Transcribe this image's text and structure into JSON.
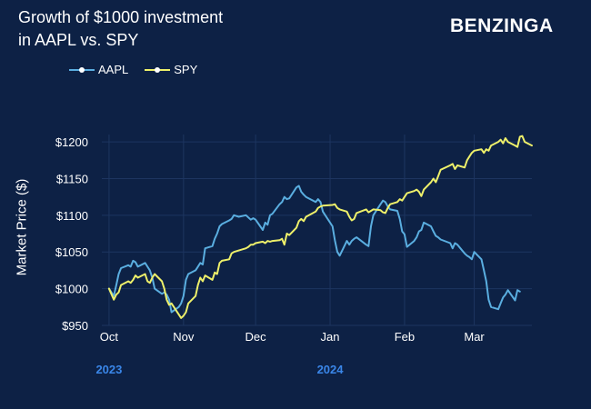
{
  "title": {
    "line1": "Growth of $1000 investment",
    "line2": "in AAPL vs. SPY"
  },
  "brand": "BENZINGA",
  "colors": {
    "background": "#0d2145",
    "grid": "#1d3560",
    "aapl": "#5aaee0",
    "spy": "#eef06a",
    "year": "#3a86e8"
  },
  "chart_data": {
    "type": "line",
    "ylabel": "Market Price ($)",
    "ylim": [
      950,
      1210
    ],
    "y_ticks": [
      950,
      1000,
      1050,
      1100,
      1150,
      1200
    ],
    "y_tick_labels": [
      "$950",
      "$1000",
      "$1050",
      "$1100",
      "$1150",
      "$1200"
    ],
    "x_range": [
      "2023-09-28",
      "2024-03-25"
    ],
    "x_ticks": [
      {
        "date": "2023-10-01",
        "label": "Oct"
      },
      {
        "date": "2023-11-01",
        "label": "Nov"
      },
      {
        "date": "2023-12-01",
        "label": "Dec"
      },
      {
        "date": "2024-01-01",
        "label": "Jan"
      },
      {
        "date": "2024-02-01",
        "label": "Feb"
      },
      {
        "date": "2024-03-01",
        "label": "Mar"
      }
    ],
    "year_labels": [
      {
        "date": "2023-10-01",
        "label": "2023"
      },
      {
        "date": "2024-01-01",
        "label": "2024"
      }
    ],
    "legend_position": "top-left",
    "grid": true,
    "series": [
      {
        "name": "AAPL",
        "points": [
          [
            "2023-10-01",
            1000
          ],
          [
            "2023-10-03",
            990
          ],
          [
            "2023-10-04",
            1005
          ],
          [
            "2023-10-05",
            1020
          ],
          [
            "2023-10-06",
            1028
          ],
          [
            "2023-10-09",
            1032
          ],
          [
            "2023-10-10",
            1030
          ],
          [
            "2023-10-11",
            1038
          ],
          [
            "2023-10-12",
            1036
          ],
          [
            "2023-10-13",
            1030
          ],
          [
            "2023-10-16",
            1035
          ],
          [
            "2023-10-17",
            1030
          ],
          [
            "2023-10-18",
            1025
          ],
          [
            "2023-10-19",
            1015
          ],
          [
            "2023-10-20",
            1000
          ],
          [
            "2023-10-23",
            993
          ],
          [
            "2023-10-24",
            995
          ],
          [
            "2023-10-25",
            992
          ],
          [
            "2023-10-26",
            985
          ],
          [
            "2023-10-27",
            968
          ],
          [
            "2023-10-30",
            975
          ],
          [
            "2023-10-31",
            980
          ],
          [
            "2023-11-01",
            990
          ],
          [
            "2023-11-02",
            1012
          ],
          [
            "2023-11-03",
            1020
          ],
          [
            "2023-11-06",
            1025
          ],
          [
            "2023-11-07",
            1030
          ],
          [
            "2023-11-08",
            1035
          ],
          [
            "2023-11-09",
            1033
          ],
          [
            "2023-11-10",
            1055
          ],
          [
            "2023-11-13",
            1058
          ],
          [
            "2023-11-14",
            1068
          ],
          [
            "2023-11-15",
            1075
          ],
          [
            "2023-11-16",
            1085
          ],
          [
            "2023-11-17",
            1088
          ],
          [
            "2023-11-20",
            1093
          ],
          [
            "2023-11-21",
            1095
          ],
          [
            "2023-11-22",
            1100
          ],
          [
            "2023-11-24",
            1098
          ],
          [
            "2023-11-27",
            1100
          ],
          [
            "2023-11-28",
            1097
          ],
          [
            "2023-11-29",
            1094
          ],
          [
            "2023-11-30",
            1096
          ],
          [
            "2023-12-01",
            1094
          ],
          [
            "2023-12-04",
            1080
          ],
          [
            "2023-12-05",
            1090
          ],
          [
            "2023-12-06",
            1087
          ],
          [
            "2023-12-07",
            1100
          ],
          [
            "2023-12-08",
            1102
          ],
          [
            "2023-12-11",
            1115
          ],
          [
            "2023-12-12",
            1118
          ],
          [
            "2023-12-13",
            1125
          ],
          [
            "2023-12-14",
            1122
          ],
          [
            "2023-12-15",
            1123
          ],
          [
            "2023-12-18",
            1138
          ],
          [
            "2023-12-19",
            1140
          ],
          [
            "2023-12-20",
            1132
          ],
          [
            "2023-12-21",
            1128
          ],
          [
            "2023-12-22",
            1125
          ],
          [
            "2023-12-26",
            1118
          ],
          [
            "2023-12-27",
            1122
          ],
          [
            "2023-12-28",
            1118
          ],
          [
            "2023-12-29",
            1105
          ],
          [
            "2024-01-02",
            1085
          ],
          [
            "2024-01-03",
            1066
          ],
          [
            "2024-01-04",
            1050
          ],
          [
            "2024-01-05",
            1045
          ],
          [
            "2024-01-08",
            1065
          ],
          [
            "2024-01-09",
            1060
          ],
          [
            "2024-01-10",
            1065
          ],
          [
            "2024-01-11",
            1068
          ],
          [
            "2024-01-12",
            1070
          ],
          [
            "2024-01-16",
            1060
          ],
          [
            "2024-01-17",
            1058
          ],
          [
            "2024-01-18",
            1085
          ],
          [
            "2024-01-19",
            1100
          ],
          [
            "2024-01-22",
            1115
          ],
          [
            "2024-01-23",
            1120
          ],
          [
            "2024-01-24",
            1118
          ],
          [
            "2024-01-25",
            1112
          ],
          [
            "2024-01-26",
            1108
          ],
          [
            "2024-01-29",
            1106
          ],
          [
            "2024-01-30",
            1095
          ],
          [
            "2024-01-31",
            1078
          ],
          [
            "2024-02-01",
            1074
          ],
          [
            "2024-02-02",
            1057
          ],
          [
            "2024-02-05",
            1065
          ],
          [
            "2024-02-06",
            1070
          ],
          [
            "2024-02-07",
            1078
          ],
          [
            "2024-02-08",
            1080
          ],
          [
            "2024-02-09",
            1090
          ],
          [
            "2024-02-12",
            1085
          ],
          [
            "2024-02-13",
            1078
          ],
          [
            "2024-02-14",
            1072
          ],
          [
            "2024-02-15",
            1070
          ],
          [
            "2024-02-16",
            1067
          ],
          [
            "2024-02-20",
            1062
          ],
          [
            "2024-02-21",
            1055
          ],
          [
            "2024-02-22",
            1062
          ],
          [
            "2024-02-23",
            1060
          ],
          [
            "2024-02-26",
            1048
          ],
          [
            "2024-02-27",
            1045
          ],
          [
            "2024-02-28",
            1043
          ],
          [
            "2024-02-29",
            1040
          ],
          [
            "2024-03-01",
            1050
          ],
          [
            "2024-03-04",
            1040
          ],
          [
            "2024-03-05",
            1025
          ],
          [
            "2024-03-06",
            1010
          ],
          [
            "2024-03-07",
            985
          ],
          [
            "2024-03-08",
            975
          ],
          [
            "2024-03-11",
            972
          ],
          [
            "2024-03-12",
            980
          ],
          [
            "2024-03-13",
            988
          ],
          [
            "2024-03-14",
            992
          ],
          [
            "2024-03-15",
            998
          ],
          [
            "2024-03-18",
            984
          ],
          [
            "2024-03-19",
            998
          ],
          [
            "2024-03-20",
            996
          ]
        ]
      },
      {
        "name": "SPY",
        "points": [
          [
            "2023-10-01",
            1000
          ],
          [
            "2023-10-03",
            985
          ],
          [
            "2023-10-04",
            992
          ],
          [
            "2023-10-05",
            995
          ],
          [
            "2023-10-06",
            1005
          ],
          [
            "2023-10-09",
            1010
          ],
          [
            "2023-10-10",
            1008
          ],
          [
            "2023-10-11",
            1012
          ],
          [
            "2023-10-12",
            1018
          ],
          [
            "2023-10-13",
            1015
          ],
          [
            "2023-10-16",
            1020
          ],
          [
            "2023-10-17",
            1010
          ],
          [
            "2023-10-18",
            1008
          ],
          [
            "2023-10-19",
            1015
          ],
          [
            "2023-10-20",
            1020
          ],
          [
            "2023-10-23",
            1010
          ],
          [
            "2023-10-24",
            1000
          ],
          [
            "2023-10-25",
            985
          ],
          [
            "2023-10-26",
            978
          ],
          [
            "2023-10-27",
            980
          ],
          [
            "2023-10-30",
            965
          ],
          [
            "2023-10-31",
            960
          ],
          [
            "2023-11-01",
            963
          ],
          [
            "2023-11-02",
            968
          ],
          [
            "2023-11-03",
            980
          ],
          [
            "2023-11-06",
            990
          ],
          [
            "2023-11-07",
            1005
          ],
          [
            "2023-11-08",
            1015
          ],
          [
            "2023-11-09",
            1010
          ],
          [
            "2023-11-10",
            1018
          ],
          [
            "2023-11-13",
            1012
          ],
          [
            "2023-11-14",
            1022
          ],
          [
            "2023-11-15",
            1020
          ],
          [
            "2023-11-16",
            1035
          ],
          [
            "2023-11-17",
            1038
          ],
          [
            "2023-11-20",
            1040
          ],
          [
            "2023-11-21",
            1048
          ],
          [
            "2023-11-22",
            1050
          ],
          [
            "2023-11-24",
            1052
          ],
          [
            "2023-11-27",
            1055
          ],
          [
            "2023-11-28",
            1057
          ],
          [
            "2023-11-29",
            1060
          ],
          [
            "2023-11-30",
            1060
          ],
          [
            "2023-12-01",
            1062
          ],
          [
            "2023-12-04",
            1064
          ],
          [
            "2023-12-05",
            1062
          ],
          [
            "2023-12-06",
            1065
          ],
          [
            "2023-12-07",
            1064
          ],
          [
            "2023-12-08",
            1065
          ],
          [
            "2023-12-11",
            1066
          ],
          [
            "2023-12-12",
            1068
          ],
          [
            "2023-12-13",
            1060
          ],
          [
            "2023-12-14",
            1075
          ],
          [
            "2023-12-15",
            1073
          ],
          [
            "2023-12-18",
            1083
          ],
          [
            "2023-12-19",
            1092
          ],
          [
            "2023-12-20",
            1095
          ],
          [
            "2023-12-21",
            1092
          ],
          [
            "2023-12-22",
            1098
          ],
          [
            "2023-12-26",
            1105
          ],
          [
            "2023-12-27",
            1110
          ],
          [
            "2023-12-28",
            1112
          ],
          [
            "2023-12-29",
            1113
          ],
          [
            "2024-01-02",
            1114
          ],
          [
            "2024-01-03",
            1115
          ],
          [
            "2024-01-04",
            1110
          ],
          [
            "2024-01-05",
            1108
          ],
          [
            "2024-01-08",
            1105
          ],
          [
            "2024-01-09",
            1098
          ],
          [
            "2024-01-10",
            1093
          ],
          [
            "2024-01-11",
            1095
          ],
          [
            "2024-01-12",
            1103
          ],
          [
            "2024-01-16",
            1108
          ],
          [
            "2024-01-17",
            1104
          ],
          [
            "2024-01-18",
            1106
          ],
          [
            "2024-01-19",
            1108
          ],
          [
            "2024-01-22",
            1107
          ],
          [
            "2024-01-23",
            1104
          ],
          [
            "2024-01-24",
            1103
          ],
          [
            "2024-01-25",
            1110
          ],
          [
            "2024-01-26",
            1115
          ],
          [
            "2024-01-29",
            1118
          ],
          [
            "2024-01-30",
            1122
          ],
          [
            "2024-01-31",
            1120
          ],
          [
            "2024-02-01",
            1125
          ],
          [
            "2024-02-02",
            1130
          ],
          [
            "2024-02-05",
            1133
          ],
          [
            "2024-02-06",
            1135
          ],
          [
            "2024-02-07",
            1132
          ],
          [
            "2024-02-08",
            1126
          ],
          [
            "2024-02-09",
            1135
          ],
          [
            "2024-02-12",
            1145
          ],
          [
            "2024-02-13",
            1150
          ],
          [
            "2024-02-14",
            1145
          ],
          [
            "2024-02-15",
            1153
          ],
          [
            "2024-02-16",
            1162
          ],
          [
            "2024-02-20",
            1168
          ],
          [
            "2024-02-21",
            1170
          ],
          [
            "2024-02-22",
            1163
          ],
          [
            "2024-02-23",
            1168
          ],
          [
            "2024-02-26",
            1165
          ],
          [
            "2024-02-27",
            1175
          ],
          [
            "2024-02-28",
            1180
          ],
          [
            "2024-02-29",
            1185
          ],
          [
            "2024-03-01",
            1188
          ],
          [
            "2024-03-04",
            1190
          ],
          [
            "2024-03-05",
            1185
          ],
          [
            "2024-03-06",
            1190
          ],
          [
            "2024-03-07",
            1188
          ],
          [
            "2024-03-08",
            1195
          ],
          [
            "2024-03-11",
            1200
          ],
          [
            "2024-03-12",
            1203
          ],
          [
            "2024-03-13",
            1198
          ],
          [
            "2024-03-14",
            1205
          ],
          [
            "2024-03-15",
            1200
          ],
          [
            "2024-03-18",
            1195
          ],
          [
            "2024-03-19",
            1193
          ],
          [
            "2024-03-20",
            1207
          ],
          [
            "2024-03-21",
            1208
          ],
          [
            "2024-03-22",
            1200
          ],
          [
            "2024-03-25",
            1195
          ]
        ]
      }
    ]
  }
}
